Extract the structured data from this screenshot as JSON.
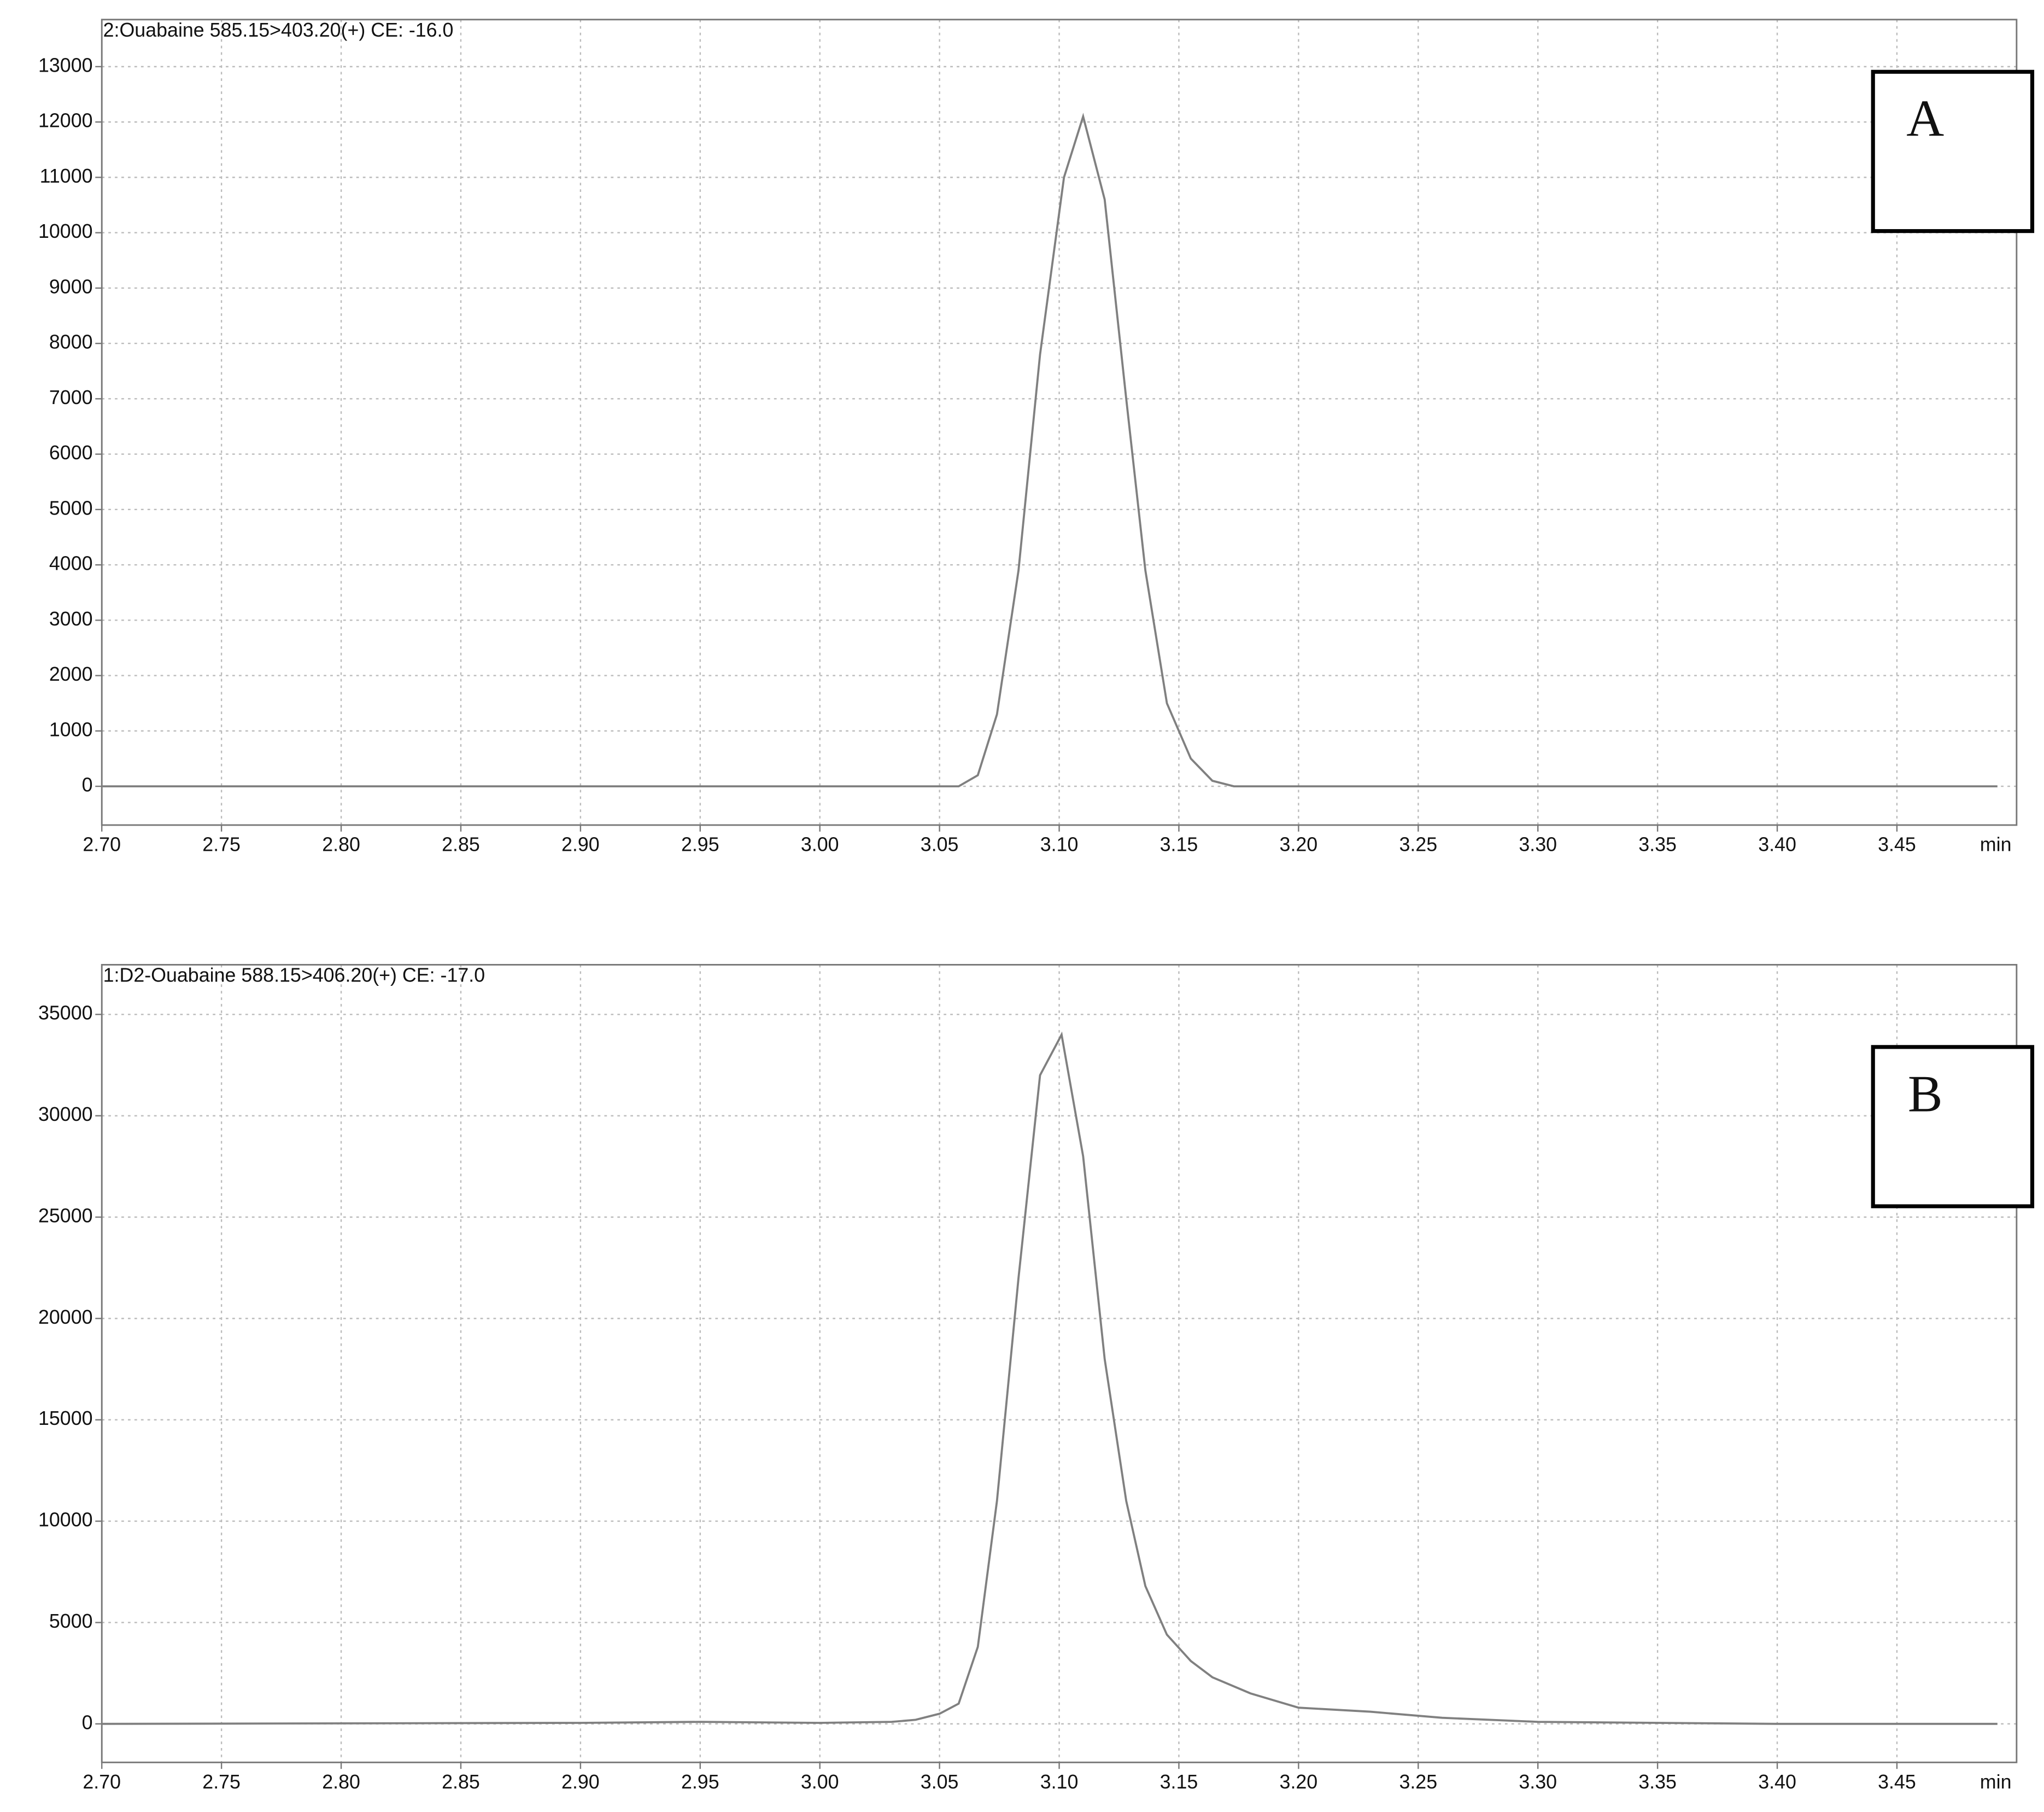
{
  "chart_data": [
    {
      "type": "line",
      "title": "2:Ouabaine 585.15>403.20(+) CE: -16.0",
      "annotation": "A",
      "x_label": "min",
      "color": "#808080",
      "grid": true,
      "x": [
        2.7,
        3.058,
        3.066,
        3.074,
        3.083,
        3.092,
        3.102,
        3.11,
        3.119,
        3.128,
        3.136,
        3.145,
        3.155,
        3.164,
        3.173,
        3.492
      ],
      "values": [
        0,
        0,
        200,
        1300,
        3900,
        7800,
        11000,
        12100,
        10600,
        7000,
        3900,
        1500,
        500,
        100,
        0,
        0
      ],
      "xlim": [
        2.7,
        3.5
      ],
      "xticks": [
        {
          "value": 2.7,
          "label": "2.70"
        },
        2.75,
        {
          "value": 2.8,
          "label": "2.80"
        },
        2.85,
        {
          "value": 2.9,
          "label": "2.90"
        },
        2.95,
        {
          "value": 3.0,
          "label": "3.00"
        },
        3.05,
        {
          "value": 3.1,
          "label": "3.10"
        },
        3.15,
        {
          "value": 3.2,
          "label": "3.20"
        },
        3.25,
        {
          "value": 3.3,
          "label": "3.30"
        },
        3.35,
        {
          "value": 3.4,
          "label": "3.40"
        },
        3.45
      ],
      "ylim": [
        -700,
        13850
      ],
      "yticks": [
        0,
        1000,
        2000,
        3000,
        4000,
        5000,
        6000,
        7000,
        8000,
        9000,
        10000,
        11000,
        12000,
        13000
      ]
    },
    {
      "type": "line",
      "title": "1:D2-Ouabaine 588.15>406.20(+) CE: -17.0",
      "annotation": "B",
      "x_label": "min",
      "color": "#808080",
      "grid": true,
      "x": [
        2.7,
        2.9,
        2.95,
        3.0,
        3.03,
        3.04,
        3.05,
        3.058,
        3.066,
        3.074,
        3.083,
        3.092,
        3.101,
        3.11,
        3.119,
        3.128,
        3.136,
        3.145,
        3.155,
        3.164,
        3.18,
        3.2,
        3.23,
        3.26,
        3.3,
        3.4,
        3.492
      ],
      "values": [
        0,
        50,
        100,
        50,
        100,
        200,
        500,
        1000,
        3800,
        11000,
        22000,
        32000,
        34000,
        28000,
        18000,
        11000,
        6800,
        4400,
        3100,
        2300,
        1500,
        800,
        600,
        300,
        100,
        0,
        0
      ],
      "xlim": [
        2.7,
        3.5
      ],
      "xticks": [
        {
          "value": 2.7,
          "label": "2.70"
        },
        2.75,
        {
          "value": 2.8,
          "label": "2.80"
        },
        2.85,
        {
          "value": 2.9,
          "label": "2.90"
        },
        2.95,
        {
          "value": 3.0,
          "label": "3.00"
        },
        3.05,
        {
          "value": 3.1,
          "label": "3.10"
        },
        3.15,
        {
          "value": 3.2,
          "label": "3.20"
        },
        3.25,
        {
          "value": 3.3,
          "label": "3.30"
        },
        3.35,
        {
          "value": 3.4,
          "label": "3.40"
        },
        3.45
      ],
      "ylim": [
        -1900,
        37450
      ],
      "yticks": [
        0,
        5000,
        10000,
        15000,
        20000,
        25000,
        30000,
        35000
      ]
    }
  ]
}
